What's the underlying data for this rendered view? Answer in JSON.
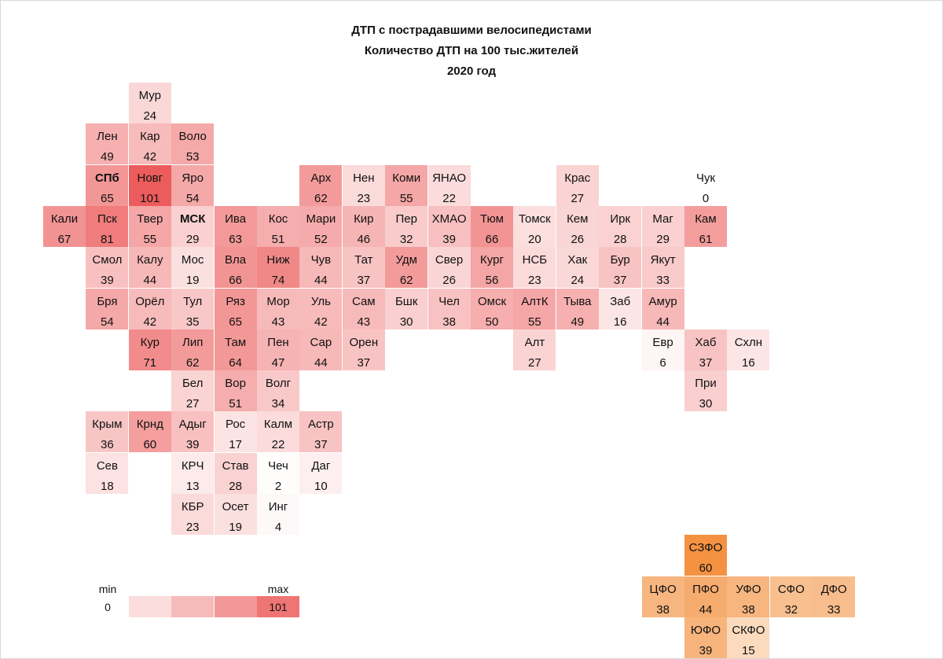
{
  "chart_data": {
    "type": "heatmap",
    "title": "ДТП с пострадавшими велосипедистами",
    "subtitle": "Количество ДТП на 100 тыс.жителей",
    "year": "2020 год",
    "value_range": [
      0,
      101
    ],
    "regions": [
      {
        "label": "Мур",
        "value": 24,
        "col": 2,
        "row": 0
      },
      {
        "label": "Лен",
        "value": 49,
        "col": 1,
        "row": 1
      },
      {
        "label": "Кар",
        "value": 42,
        "col": 2,
        "row": 1
      },
      {
        "label": "Воло",
        "value": 53,
        "col": 3,
        "row": 1
      },
      {
        "label": "СПб",
        "value": 65,
        "col": 1,
        "row": 2,
        "bold": true
      },
      {
        "label": "Новг",
        "value": 101,
        "col": 2,
        "row": 2
      },
      {
        "label": "Яро",
        "value": 54,
        "col": 3,
        "row": 2
      },
      {
        "label": "Арх",
        "value": 62,
        "col": 6,
        "row": 2
      },
      {
        "label": "Нен",
        "value": 23,
        "col": 7,
        "row": 2
      },
      {
        "label": "Коми",
        "value": 55,
        "col": 8,
        "row": 2
      },
      {
        "label": "ЯНАО",
        "value": 22,
        "col": 9,
        "row": 2
      },
      {
        "label": "Крас",
        "value": 27,
        "col": 12,
        "row": 2
      },
      {
        "label": "Чук",
        "value": 0,
        "col": 15,
        "row": 2
      },
      {
        "label": "Кали",
        "value": 67,
        "col": 0,
        "row": 3
      },
      {
        "label": "Пск",
        "value": 81,
        "col": 1,
        "row": 3
      },
      {
        "label": "Твер",
        "value": 55,
        "col": 2,
        "row": 3
      },
      {
        "label": "МСК",
        "value": 29,
        "col": 3,
        "row": 3,
        "bold": true
      },
      {
        "label": "Ива",
        "value": 63,
        "col": 4,
        "row": 3
      },
      {
        "label": "Кос",
        "value": 51,
        "col": 5,
        "row": 3
      },
      {
        "label": "Мари",
        "value": 52,
        "col": 6,
        "row": 3
      },
      {
        "label": "Кир",
        "value": 46,
        "col": 7,
        "row": 3
      },
      {
        "label": "Пер",
        "value": 32,
        "col": 8,
        "row": 3
      },
      {
        "label": "ХМАО",
        "value": 39,
        "col": 9,
        "row": 3
      },
      {
        "label": "Тюм",
        "value": 66,
        "col": 10,
        "row": 3
      },
      {
        "label": "Томск",
        "value": 20,
        "col": 11,
        "row": 3
      },
      {
        "label": "Кем",
        "value": 26,
        "col": 12,
        "row": 3
      },
      {
        "label": "Ирк",
        "value": 28,
        "col": 13,
        "row": 3
      },
      {
        "label": "Маг",
        "value": 29,
        "col": 14,
        "row": 3
      },
      {
        "label": "Кам",
        "value": 61,
        "col": 15,
        "row": 3
      },
      {
        "label": "Смол",
        "value": 39,
        "col": 1,
        "row": 4
      },
      {
        "label": "Калу",
        "value": 44,
        "col": 2,
        "row": 4
      },
      {
        "label": "Мос",
        "value": 19,
        "col": 3,
        "row": 4
      },
      {
        "label": "Вла",
        "value": 66,
        "col": 4,
        "row": 4
      },
      {
        "label": "Ниж",
        "value": 74,
        "col": 5,
        "row": 4
      },
      {
        "label": "Чув",
        "value": 44,
        "col": 6,
        "row": 4
      },
      {
        "label": "Тат",
        "value": 37,
        "col": 7,
        "row": 4
      },
      {
        "label": "Удм",
        "value": 62,
        "col": 8,
        "row": 4
      },
      {
        "label": "Свер",
        "value": 26,
        "col": 9,
        "row": 4
      },
      {
        "label": "Кург",
        "value": 56,
        "col": 10,
        "row": 4
      },
      {
        "label": "НСБ",
        "value": 23,
        "col": 11,
        "row": 4
      },
      {
        "label": "Хак",
        "value": 24,
        "col": 12,
        "row": 4
      },
      {
        "label": "Бур",
        "value": 37,
        "col": 13,
        "row": 4
      },
      {
        "label": "Якут",
        "value": 33,
        "col": 14,
        "row": 4
      },
      {
        "label": "Бря",
        "value": 54,
        "col": 1,
        "row": 5
      },
      {
        "label": "Орёл",
        "value": 42,
        "col": 2,
        "row": 5
      },
      {
        "label": "Тул",
        "value": 35,
        "col": 3,
        "row": 5
      },
      {
        "label": "Ряз",
        "value": 65,
        "col": 4,
        "row": 5
      },
      {
        "label": "Мор",
        "value": 43,
        "col": 5,
        "row": 5
      },
      {
        "label": "Уль",
        "value": 42,
        "col": 6,
        "row": 5
      },
      {
        "label": "Сам",
        "value": 43,
        "col": 7,
        "row": 5
      },
      {
        "label": "Бшк",
        "value": 30,
        "col": 8,
        "row": 5
      },
      {
        "label": "Чел",
        "value": 38,
        "col": 9,
        "row": 5
      },
      {
        "label": "Омск",
        "value": 50,
        "col": 10,
        "row": 5
      },
      {
        "label": "АлтК",
        "value": 55,
        "col": 11,
        "row": 5
      },
      {
        "label": "Тыва",
        "value": 49,
        "col": 12,
        "row": 5
      },
      {
        "label": "Заб",
        "value": 16,
        "col": 13,
        "row": 5
      },
      {
        "label": "Амур",
        "value": 44,
        "col": 14,
        "row": 5
      },
      {
        "label": "Кур",
        "value": 71,
        "col": 2,
        "row": 6
      },
      {
        "label": "Лип",
        "value": 62,
        "col": 3,
        "row": 6
      },
      {
        "label": "Там",
        "value": 64,
        "col": 4,
        "row": 6
      },
      {
        "label": "Пен",
        "value": 47,
        "col": 5,
        "row": 6
      },
      {
        "label": "Сар",
        "value": 44,
        "col": 6,
        "row": 6
      },
      {
        "label": "Орен",
        "value": 37,
        "col": 7,
        "row": 6
      },
      {
        "label": "Алт",
        "value": 27,
        "col": 11,
        "row": 6
      },
      {
        "label": "Евр",
        "value": 6,
        "col": 14,
        "row": 6
      },
      {
        "label": "Хаб",
        "value": 37,
        "col": 15,
        "row": 6
      },
      {
        "label": "Схлн",
        "value": 16,
        "col": 16,
        "row": 6
      },
      {
        "label": "Бел",
        "value": 27,
        "col": 3,
        "row": 7
      },
      {
        "label": "Вор",
        "value": 51,
        "col": 4,
        "row": 7
      },
      {
        "label": "Волг",
        "value": 34,
        "col": 5,
        "row": 7
      },
      {
        "label": "При",
        "value": 30,
        "col": 15,
        "row": 7
      },
      {
        "label": "Крым",
        "value": 36,
        "col": 1,
        "row": 8
      },
      {
        "label": "Крнд",
        "value": 60,
        "col": 2,
        "row": 8
      },
      {
        "label": "Адыг",
        "value": 39,
        "col": 3,
        "row": 8
      },
      {
        "label": "Рос",
        "value": 17,
        "col": 4,
        "row": 8
      },
      {
        "label": "Калм",
        "value": 22,
        "col": 5,
        "row": 8
      },
      {
        "label": "Астр",
        "value": 37,
        "col": 6,
        "row": 8
      },
      {
        "label": "Сев",
        "value": 18,
        "col": 1,
        "row": 9
      },
      {
        "label": "КРЧ",
        "value": 13,
        "col": 3,
        "row": 9
      },
      {
        "label": "Став",
        "value": 28,
        "col": 4,
        "row": 9
      },
      {
        "label": "Чеч",
        "value": 2,
        "col": 5,
        "row": 9
      },
      {
        "label": "Даг",
        "value": 10,
        "col": 6,
        "row": 9
      },
      {
        "label": "КБР",
        "value": 23,
        "col": 3,
        "row": 10
      },
      {
        "label": "Осет",
        "value": 19,
        "col": 4,
        "row": 10
      },
      {
        "label": "Инг",
        "value": 4,
        "col": 5,
        "row": 10
      }
    ],
    "federal_districts": [
      {
        "label": "СЗФО",
        "value": 60,
        "col": 15,
        "row": 11
      },
      {
        "label": "ЦФО",
        "value": 38,
        "col": 14,
        "row": 12
      },
      {
        "label": "ПФО",
        "value": 44,
        "col": 15,
        "row": 12
      },
      {
        "label": "УФО",
        "value": 38,
        "col": 16,
        "row": 12
      },
      {
        "label": "СФО",
        "value": 32,
        "col": 17,
        "row": 12
      },
      {
        "label": "ДФО",
        "value": 33,
        "col": 18,
        "row": 12
      },
      {
        "label": "ЮФО",
        "value": 39,
        "col": 15,
        "row": 13
      },
      {
        "label": "СКФО",
        "value": 15,
        "col": 16,
        "row": 13
      }
    ],
    "legend": {
      "min_label": "min",
      "max_label": "max",
      "min_value": "0",
      "max_value": "101",
      "steps": [
        25,
        50,
        75,
        101
      ]
    }
  }
}
